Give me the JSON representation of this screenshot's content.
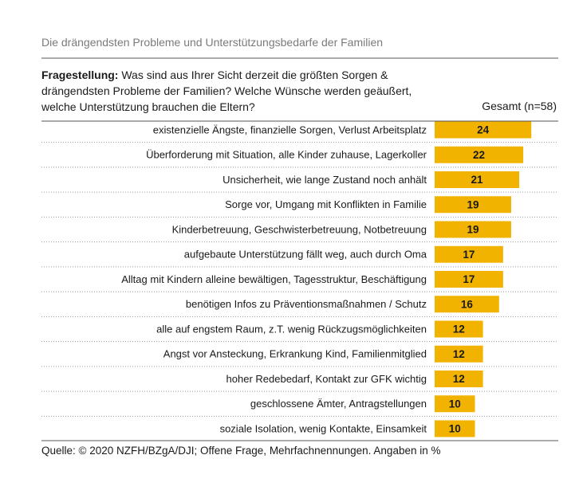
{
  "chart_data": {
    "type": "bar",
    "title": "Die drängendsten Probleme und Unterstützungsbedarfe der Familien",
    "question_label": "Fragestellung:",
    "question": "Was sind aus Ihrer Sicht derzeit die größten Sorgen & drängendsten Probleme der Familien? Welche Wünsche werden geäußert, welche Unterstützung brauchen die Eltern?",
    "column_header": "Gesamt (n=58)",
    "categories": [
      "existenzielle Ängste, finanzielle Sorgen, Verlust Arbeitsplatz",
      "Überforderung mit Situation, alle Kinder zuhause, Lagerkoller",
      "Unsicherheit, wie lange Zustand noch anhält",
      "Sorge vor, Umgang mit Konflikten in Familie",
      "Kinderbetreuung, Geschwisterbetreuung, Notbetreuung",
      "aufgebaute Unterstützung fällt weg, auch durch Oma",
      "Alltag mit Kindern alleine bewältigen, Tagesstruktur, Beschäftigung",
      "benötigen Infos zu Präventionsmaßnahmen / Schutz",
      "alle auf engstem Raum, z.T. wenig Rückzugsmöglichkeiten",
      "Angst vor Ansteckung, Erkrankung Kind, Familienmitglied",
      "hoher Redebedarf, Kontakt zur GFK wichtig",
      "geschlossene Ämter, Antragstellungen",
      "soziale Isolation, wenig Kontakte, Einsamkeit"
    ],
    "values": [
      24,
      22,
      21,
      19,
      19,
      17,
      17,
      16,
      12,
      12,
      12,
      10,
      10
    ],
    "color": "#f2b300",
    "source": "Quelle: © 2020 NZFH/BZgA/DJI; Offene Frage, Mehrfachnennungen. Angaben in %"
  }
}
